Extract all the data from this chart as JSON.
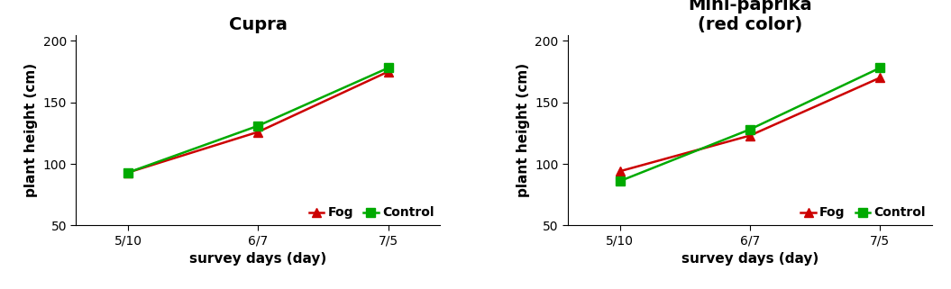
{
  "x_labels": [
    "5/10",
    "6/7",
    "7/5"
  ],
  "x_positions": [
    0,
    1,
    2
  ],
  "cupra": {
    "title": "Cupra",
    "fog": [
      93,
      126,
      175
    ],
    "control": [
      93,
      131,
      178
    ]
  },
  "minipaprika": {
    "title": "Mini-paprika\n(red color)",
    "fog": [
      94,
      123,
      170
    ],
    "control": [
      86,
      128,
      178
    ]
  },
  "fog_color": "#cc0000",
  "control_color": "#00aa00",
  "ylabel": "plant height (cm)",
  "xlabel": "survey days (day)",
  "ylim": [
    50,
    205
  ],
  "yticks": [
    50,
    100,
    150,
    200
  ],
  "bg_color": "#ffffff",
  "title_fontsize": 14,
  "label_fontsize": 11,
  "tick_fontsize": 10,
  "legend_fontsize": 10,
  "line_width": 1.8,
  "marker_size": 7
}
